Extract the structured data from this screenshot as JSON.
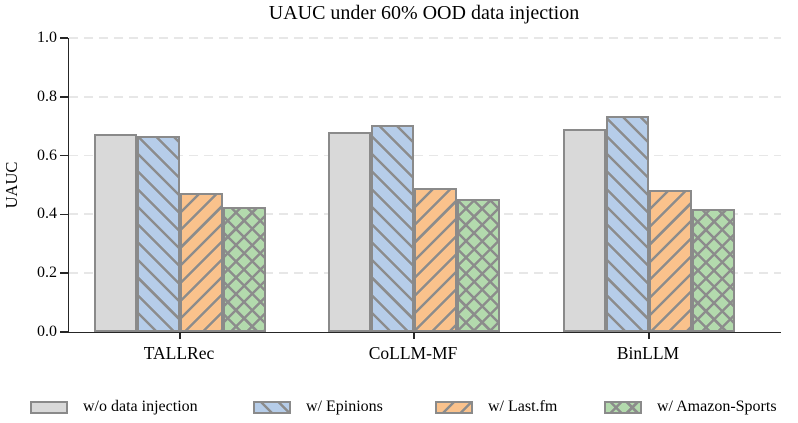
{
  "chart_data": {
    "type": "bar",
    "title": "UAUC under 60% OOD data injection",
    "ylabel": "UAUC",
    "xlabel": "",
    "categories": [
      "TALLRec",
      "CoLLM-MF",
      "BinLLM"
    ],
    "series": [
      {
        "name": "w/o data injection",
        "fill": "#d9d9d9",
        "hatch": "none",
        "values": [
          0.675,
          0.68,
          0.69
        ]
      },
      {
        "name": "w/ Epinions",
        "fill": "#b6cde9",
        "hatch": "forward",
        "values": [
          0.668,
          0.705,
          0.735
        ]
      },
      {
        "name": "w/ Last.fm",
        "fill": "#fac28c",
        "hatch": "backward",
        "values": [
          0.473,
          0.49,
          0.482
        ]
      },
      {
        "name": "w/ Amazon-Sports",
        "fill": "#b3daad",
        "hatch": "cross",
        "values": [
          0.425,
          0.452,
          0.417
        ]
      }
    ],
    "ylim": [
      0.0,
      1.0
    ],
    "yticks": [
      0.0,
      0.2,
      0.4,
      0.6,
      0.8,
      1.0
    ],
    "yticklabels": [
      "0.0",
      "0.2",
      "0.4",
      "0.6",
      "0.8",
      "1.0"
    ],
    "grid": "horizontal-dashed",
    "legend_position": "bottom",
    "colors": {
      "axis": "#262626",
      "gridline": "#e7e7e7",
      "bar_edge": "#8a8a8a",
      "hatch": "#8c8c8c",
      "background": "#ffffff"
    }
  }
}
